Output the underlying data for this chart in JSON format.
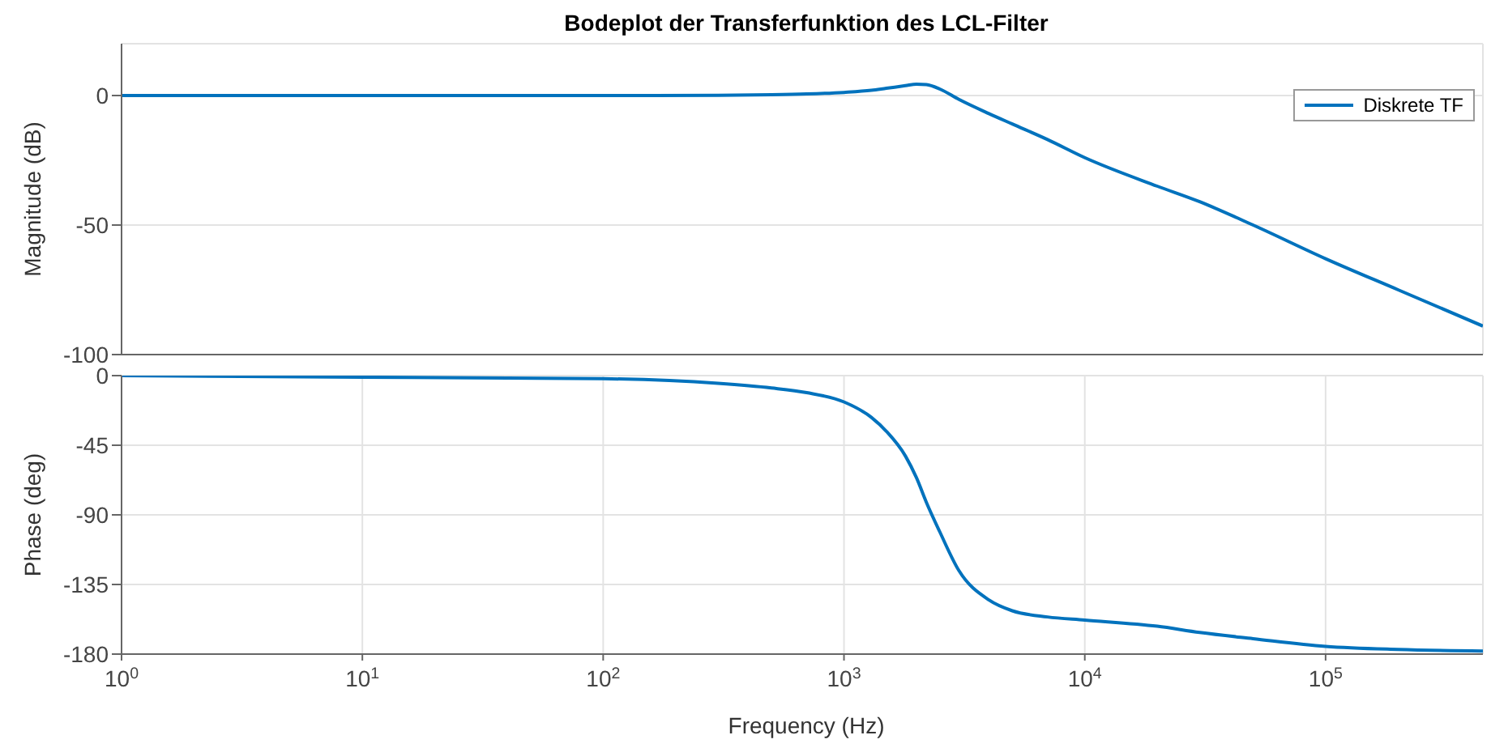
{
  "chart_data": [
    {
      "type": "line",
      "title": "Bodeplot der Transferfunktion des LCL-Filter",
      "ylabel": "Magnitude (dB)",
      "x": [
        1,
        10,
        100,
        300,
        500,
        700,
        1000,
        1300,
        1500,
        1800,
        2000,
        2200,
        2500,
        3000,
        4000,
        5000,
        7000,
        10000,
        20000,
        30000,
        50000,
        100000,
        200000,
        450000
      ],
      "series": [
        {
          "name": "Diskrete TF",
          "color": "#0072bd",
          "values": [
            0,
            0,
            0,
            0.1,
            0.3,
            0.6,
            1.2,
            2,
            2.8,
            3.8,
            4.4,
            4.2,
            2.5,
            -1.5,
            -7,
            -11,
            -17,
            -24,
            -35,
            -41,
            -50,
            -63,
            -75,
            -89
          ]
        }
      ],
      "log": "x",
      "xlim": [
        1,
        450000
      ],
      "xticks": [
        {
          "value": 1,
          "label": null
        },
        {
          "value": 10,
          "label": null
        },
        {
          "value": 100,
          "label": null
        },
        {
          "value": 1000,
          "label": null
        },
        {
          "value": 10000,
          "label": null
        },
        {
          "value": 100000,
          "label": null
        }
      ],
      "ylim": [
        -100,
        20
      ],
      "yticks": [
        -100,
        -50,
        0
      ],
      "tick_labels": "y",
      "grid": true,
      "legend": "top right"
    },
    {
      "type": "line",
      "xlabel": "Frequency  (Hz)",
      "ylabel": "Phase (deg)",
      "x": [
        1,
        10,
        100,
        300,
        500,
        700,
        1000,
        1300,
        1500,
        1800,
        2000,
        2200,
        2500,
        3000,
        4000,
        5000,
        7000,
        10000,
        20000,
        30000,
        50000,
        100000,
        200000,
        450000
      ],
      "series": [
        {
          "color": "#0072bd",
          "values": [
            0,
            -1,
            -2,
            -5,
            -8,
            -11,
            -17,
            -27,
            -36,
            -52,
            -66,
            -82,
            -101,
            -126,
            -145,
            -152,
            -156,
            -158,
            -162,
            -166,
            -170,
            -175,
            -177,
            -178
          ]
        }
      ],
      "log": "x",
      "xlim": [
        1,
        450000
      ],
      "xticks": [
        {
          "value": 1,
          "label": "10$^{0}$"
        },
        {
          "value": 10,
          "label": "10$^{1}$"
        },
        {
          "value": 100,
          "label": "10$^{2}$"
        },
        {
          "value": 1000,
          "label": "10$^{3}$"
        },
        {
          "value": 10000,
          "label": "10$^{4}$"
        },
        {
          "value": 100000,
          "label": "10$^{5}$"
        }
      ],
      "ylim": [
        -180,
        0
      ],
      "yticks": [
        -180,
        -135,
        -90,
        -45,
        0
      ],
      "grid": true
    }
  ]
}
